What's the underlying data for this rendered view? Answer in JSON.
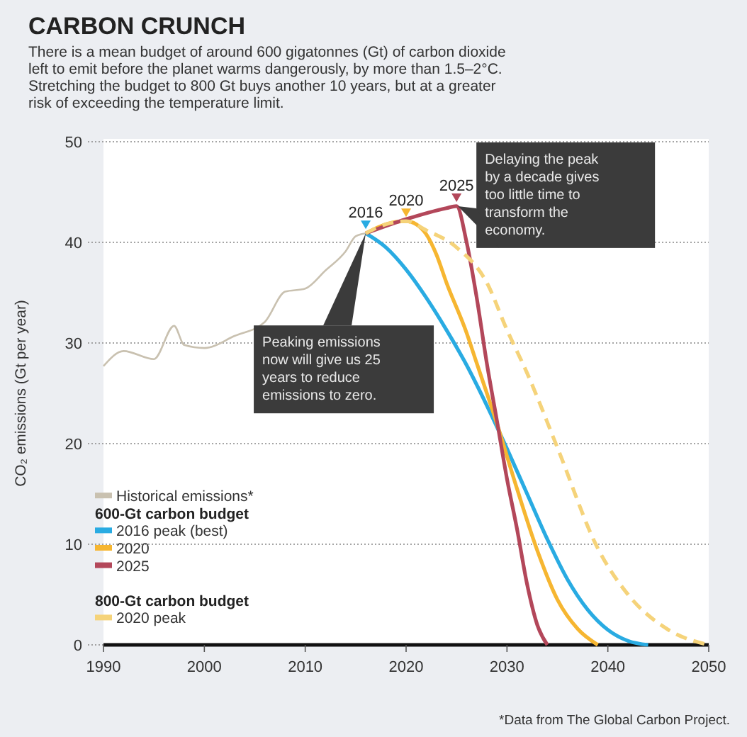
{
  "chart_data": {
    "type": "line",
    "title": "CARBON CRUNCH",
    "subtitle": "There is a mean budget of around 600 gigatonnes (Gt) of carbon dioxide left to emit before the planet warms dangerously, by more than 1.5–2°C. Stretching the budget to 800 Gt buys another 10 years, but at a greater risk of exceeding the temperature limit.",
    "ylabel": "CO₂ emissions (Gt per year)",
    "xlim": [
      1990,
      2050
    ],
    "xticks": [
      1990,
      2000,
      2010,
      2020,
      2030,
      2040,
      2050
    ],
    "ylim": [
      0,
      50
    ],
    "yticks": [
      0,
      10,
      20,
      30,
      40,
      50
    ],
    "grid": "y",
    "legend": "bottom left",
    "marker": "none",
    "series": [
      {
        "name": "Historical emissions*",
        "color": "#c9c1b0",
        "x": [
          1990,
          1992,
          1995,
          1997,
          1998,
          2000,
          2003,
          2006,
          2008,
          2010,
          2012,
          2014,
          2015,
          2016
        ],
        "values": [
          27.7,
          29.2,
          28.4,
          31.7,
          29.8,
          29.5,
          30.7,
          32.1,
          35.1,
          35.4,
          37.2,
          39.1,
          40.6,
          40.9
        ]
      },
      {
        "name": "2016 peak (best)",
        "color": "#29abe2",
        "x": [
          2016,
          2018,
          2020,
          2022,
          2024,
          2026,
          2028,
          2030,
          2032,
          2034,
          2036,
          2038,
          2040,
          2042,
          2044
        ],
        "values": [
          40.9,
          39.5,
          37.3,
          34.5,
          31.3,
          27.8,
          23.8,
          19.5,
          15,
          10.5,
          6.5,
          3.5,
          1.5,
          0.4,
          0
        ]
      },
      {
        "name": "2020",
        "color": "#f6b631",
        "x": [
          2016,
          2018,
          2020,
          2021,
          2022,
          2023,
          2024,
          2026,
          2027,
          2029,
          2031,
          2033,
          2035,
          2037,
          2039
        ],
        "values": [
          40.9,
          41.8,
          42.1,
          41.8,
          40.8,
          38.8,
          36,
          31,
          28,
          22,
          15.5,
          9.4,
          4.5,
          1.6,
          0
        ]
      },
      {
        "name": "2025",
        "color": "#b3475a",
        "x": [
          2016,
          2020,
          2024,
          2025,
          2026,
          2027,
          2028,
          2029,
          2030,
          2031,
          2032,
          2033,
          2034
        ],
        "values": [
          40.9,
          42.3,
          43.4,
          43.6,
          40,
          34.5,
          28,
          22.3,
          16.5,
          11.5,
          6,
          2,
          0
        ]
      },
      {
        "name": "2020 peak",
        "color": "#f5d37a",
        "line_style": "dashed",
        "x": [
          2016,
          2018,
          2020,
          2022,
          2025,
          2028,
          2030,
          2032,
          2035,
          2039,
          2042,
          2046,
          2050
        ],
        "values": [
          40.9,
          41.8,
          42.1,
          41.2,
          39.5,
          36,
          31.3,
          27,
          19.6,
          9.6,
          5,
          1.5,
          0
        ]
      }
    ],
    "annotations": [
      "600-Gt carbon budget",
      "800-Gt carbon budget",
      "*Data from The Global Carbon Project.",
      {
        "text": "2016",
        "x": 2016,
        "y": 40.9
      },
      {
        "text": "2020",
        "x": 2020,
        "y": 42.1
      },
      {
        "text": "2025",
        "x": 2025,
        "y": 43.6
      },
      {
        "text": "Peaking emissions now will give us 25 years to reduce emissions to zero.",
        "x": 2016,
        "y": 40.9
      },
      {
        "text": "Delaying the peak by a decade gives too little time to transform the economy.",
        "x": 2025,
        "y": 43.6
      }
    ]
  }
}
